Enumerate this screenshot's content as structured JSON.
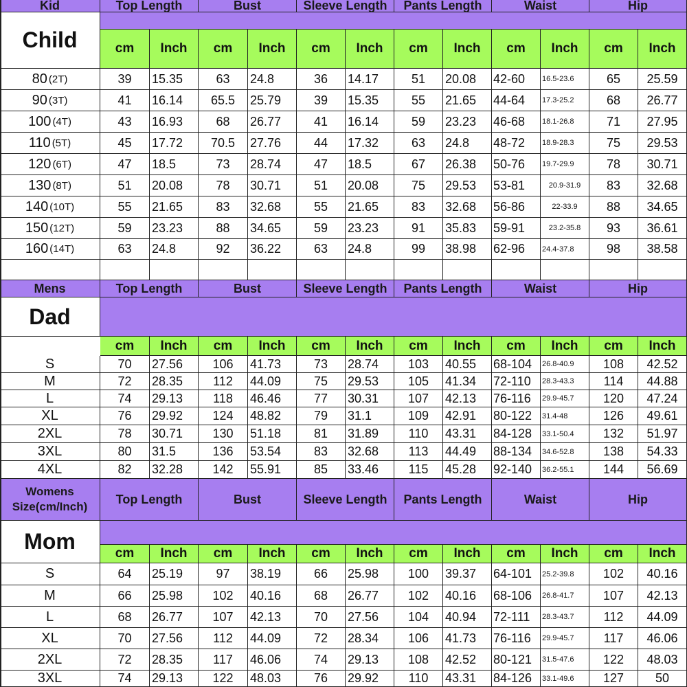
{
  "colors": {
    "header_purple": "#a77ef0",
    "unit_green": "#a6fb5c",
    "grid_line": "#222222"
  },
  "units": {
    "cm": "cm",
    "inch": "Inch"
  },
  "columns": [
    "Top Length",
    "Bust",
    "Sleeve Length",
    "Pants Length",
    "Waist",
    "Hip"
  ],
  "kid": {
    "header": "Kid",
    "label": "Child",
    "rows": [
      {
        "size": "80",
        "tag": "(2T)",
        "v": [
          "39",
          "15.35",
          "63",
          "24.8",
          "36",
          "14.17",
          "51",
          "20.08",
          "42-60",
          "16.5-23.6",
          "65",
          "25.59"
        ]
      },
      {
        "size": "90",
        "tag": "(3T)",
        "v": [
          "41",
          "16.14",
          "65.5",
          "25.79",
          "39",
          "15.35",
          "55",
          "21.65",
          "44-64",
          "17.3-25.2",
          "68",
          "26.77"
        ]
      },
      {
        "size": "100",
        "tag": "(4T)",
        "v": [
          "43",
          "16.93",
          "68",
          "26.77",
          "41",
          "16.14",
          "59",
          "23.23",
          "46-68",
          "18.1-26.8",
          "71",
          "27.95"
        ]
      },
      {
        "size": "110",
        "tag": "(5T)",
        "v": [
          "45",
          "17.72",
          "70.5",
          "27.76",
          "44",
          "17.32",
          "63",
          "24.8",
          "48-72",
          "18.9-28.3",
          "75",
          "29.53"
        ]
      },
      {
        "size": "120",
        "tag": "(6T)",
        "v": [
          "47",
          "18.5",
          "73",
          "28.74",
          "47",
          "18.5",
          "67",
          "26.38",
          "50-76",
          "19.7-29.9",
          "78",
          "30.71"
        ]
      },
      {
        "size": "130",
        "tag": "(8T)",
        "v": [
          "51",
          "20.08",
          "78",
          "30.71",
          "51",
          "20.08",
          "75",
          "29.53",
          "53-81",
          "20.9-31.9",
          "83",
          "32.68"
        ]
      },
      {
        "size": "140",
        "tag": "(10T)",
        "v": [
          "55",
          "21.65",
          "83",
          "32.68",
          "55",
          "21.65",
          "83",
          "32.68",
          "56-86",
          "22-33.9",
          "88",
          "34.65"
        ]
      },
      {
        "size": "150",
        "tag": "(12T)",
        "v": [
          "59",
          "23.23",
          "88",
          "34.65",
          "59",
          "23.23",
          "91",
          "35.83",
          "59-91",
          "23.2-35.8",
          "93",
          "36.61"
        ]
      },
      {
        "size": "160",
        "tag": "(14T)",
        "v": [
          "63",
          "24.8",
          "92",
          "36.22",
          "63",
          "24.8",
          "99",
          "38.98",
          "62-96",
          "24.4-37.8",
          "98",
          "38.58"
        ]
      }
    ]
  },
  "dad": {
    "header": "Mens",
    "label": "Dad",
    "rows": [
      {
        "size": "S",
        "v": [
          "70",
          "27.56",
          "106",
          "41.73",
          "73",
          "28.74",
          "103",
          "40.55",
          "68-104",
          "26.8-40.9",
          "108",
          "42.52"
        ]
      },
      {
        "size": "M",
        "v": [
          "72",
          "28.35",
          "112",
          "44.09",
          "75",
          "29.53",
          "105",
          "41.34",
          "72-110",
          "28.3-43.3",
          "114",
          "44.88"
        ]
      },
      {
        "size": "L",
        "v": [
          "74",
          "29.13",
          "118",
          "46.46",
          "77",
          "30.31",
          "107",
          "42.13",
          "76-116",
          "29.9-45.7",
          "120",
          "47.24"
        ]
      },
      {
        "size": "XL",
        "v": [
          "76",
          "29.92",
          "124",
          "48.82",
          "79",
          "31.1",
          "109",
          "42.91",
          "80-122",
          "31.4-48",
          "126",
          "49.61"
        ]
      },
      {
        "size": "2XL",
        "v": [
          "78",
          "30.71",
          "130",
          "51.18",
          "81",
          "31.89",
          "110",
          "43.31",
          "84-128",
          "33.1-50.4",
          "132",
          "51.97"
        ]
      },
      {
        "size": "3XL",
        "v": [
          "80",
          "31.5",
          "136",
          "53.54",
          "83",
          "32.68",
          "113",
          "44.49",
          "88-134",
          "34.6-52.8",
          "138",
          "54.33"
        ]
      },
      {
        "size": "4XL",
        "v": [
          "82",
          "32.28",
          "142",
          "55.91",
          "85",
          "33.46",
          "115",
          "45.28",
          "92-140",
          "36.2-55.1",
          "144",
          "56.69"
        ]
      }
    ]
  },
  "mom": {
    "header_line1": "Womens",
    "header_line2": "Size(cm/Inch)",
    "label": "Mom",
    "rows": [
      {
        "size": "S",
        "v": [
          "64",
          "25.19",
          "97",
          "38.19",
          "66",
          "25.98",
          "100",
          "39.37",
          "64-101",
          "25.2-39.8",
          "102",
          "40.16"
        ]
      },
      {
        "size": "M",
        "v": [
          "66",
          "25.98",
          "102",
          "40.16",
          "68",
          "26.77",
          "102",
          "40.16",
          "68-106",
          "26.8-41.7",
          "107",
          "42.13"
        ]
      },
      {
        "size": "L",
        "v": [
          "68",
          "26.77",
          "107",
          "42.13",
          "70",
          "27.56",
          "104",
          "40.94",
          "72-111",
          "28.3-43.7",
          "112",
          "44.09"
        ]
      },
      {
        "size": "XL",
        "v": [
          "70",
          "27.56",
          "112",
          "44.09",
          "72",
          "28.34",
          "106",
          "41.73",
          "76-116",
          "29.9-45.7",
          "117",
          "46.06"
        ]
      },
      {
        "size": "2XL",
        "v": [
          "72",
          "28.35",
          "117",
          "46.06",
          "74",
          "29.13",
          "108",
          "42.52",
          "80-121",
          "31.5-47.6",
          "122",
          "48.03"
        ]
      },
      {
        "size": "3XL",
        "v": [
          "74",
          "29.13",
          "122",
          "48.03",
          "76",
          "29.92",
          "110",
          "43.31",
          "84-126",
          "33.1-49.6",
          "127",
          "50"
        ]
      }
    ]
  }
}
